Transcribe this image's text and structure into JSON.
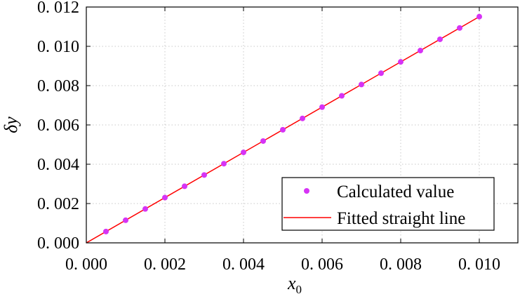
{
  "chart_data": {
    "type": "scatter",
    "title": "",
    "xlabel": "x",
    "xlabel_sub": "0",
    "ylabel": "δy",
    "xlim": [
      0,
      0.011
    ],
    "ylim": [
      0,
      0.012
    ],
    "grid": true,
    "legend_position": "bottom-right",
    "xticks": [
      0,
      0.002,
      0.004,
      0.006,
      0.008,
      0.01
    ],
    "xtick_labels": [
      "0. 000",
      "0. 002",
      "0. 004",
      "0. 006",
      "0. 008",
      "0. 010"
    ],
    "yticks": [
      0,
      0.002,
      0.004,
      0.006,
      0.008,
      0.01,
      0.012
    ],
    "ytick_labels": [
      "0. 000",
      "0. 002",
      "0. 004",
      "0. 006",
      "0. 008",
      "0. 010",
      "0. 012"
    ],
    "series": [
      {
        "name": "Calculated value",
        "kind": "scatter",
        "color": "#d633f5",
        "x": [
          0.0005,
          0.001,
          0.0015,
          0.002,
          0.0025,
          0.003,
          0.0035,
          0.004,
          0.0045,
          0.005,
          0.0055,
          0.006,
          0.0065,
          0.007,
          0.0075,
          0.008,
          0.0085,
          0.009,
          0.0095,
          0.01
        ],
        "y": [
          0.000576,
          0.001151,
          0.001727,
          0.002302,
          0.002878,
          0.003453,
          0.004029,
          0.004604,
          0.00518,
          0.005755,
          0.006331,
          0.006906,
          0.007482,
          0.008057,
          0.008633,
          0.009208,
          0.009784,
          0.010359,
          0.010935,
          0.01151
        ]
      },
      {
        "name": "Fitted straight line",
        "kind": "line",
        "color": "#ff0000",
        "x": [
          0,
          0.01
        ],
        "y": [
          0,
          0.01151
        ]
      }
    ]
  }
}
